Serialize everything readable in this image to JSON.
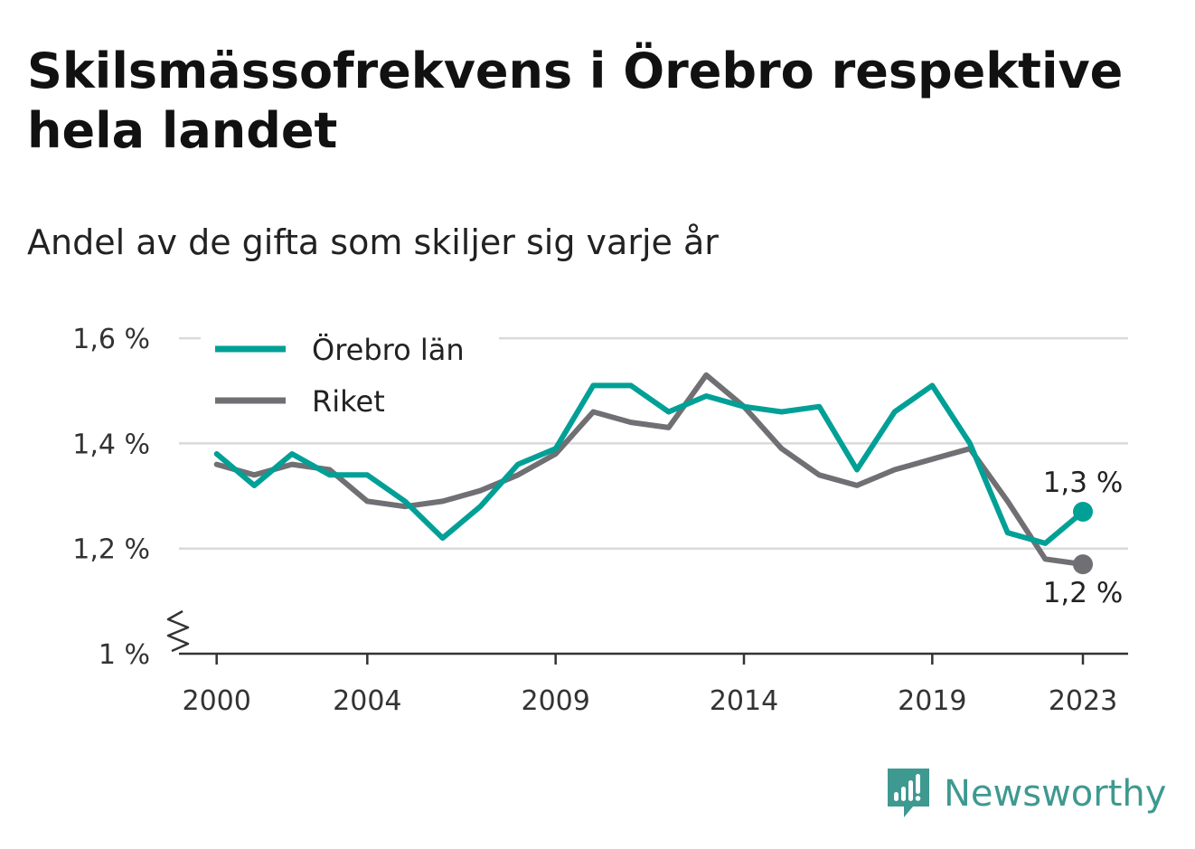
{
  "chart_data": {
    "type": "line",
    "title": "Skilsmässofrekvens i Örebro respektive hela landet",
    "subtitle": "Andel av de gifta som skiljer sig varje år",
    "xlabel": "",
    "ylabel": "",
    "x": [
      2000,
      2001,
      2002,
      2003,
      2004,
      2005,
      2006,
      2007,
      2008,
      2009,
      2010,
      2011,
      2012,
      2013,
      2014,
      2015,
      2016,
      2017,
      2018,
      2019,
      2020,
      2021,
      2022,
      2023
    ],
    "series": [
      {
        "name": "Örebro län",
        "color": "#00a096",
        "values": [
          1.38,
          1.32,
          1.38,
          1.34,
          1.34,
          1.29,
          1.22,
          1.28,
          1.36,
          1.39,
          1.51,
          1.51,
          1.46,
          1.49,
          1.47,
          1.46,
          1.47,
          1.35,
          1.46,
          1.51,
          1.4,
          1.23,
          1.21,
          1.27
        ]
      },
      {
        "name": "Riket",
        "color": "#707074",
        "values": [
          1.36,
          1.34,
          1.36,
          1.35,
          1.29,
          1.28,
          1.29,
          1.31,
          1.34,
          1.38,
          1.46,
          1.44,
          1.43,
          1.53,
          1.47,
          1.39,
          1.34,
          1.32,
          1.35,
          1.37,
          1.39,
          1.29,
          1.18,
          1.17
        ]
      }
    ],
    "yticks": [
      {
        "value": 1.0,
        "label": "1 %"
      },
      {
        "value": 1.2,
        "label": "1,2 %"
      },
      {
        "value": 1.4,
        "label": "1,4 %"
      },
      {
        "value": 1.6,
        "label": "1,6 %"
      }
    ],
    "xticks": [
      2000,
      2004,
      2009,
      2014,
      2019,
      2023
    ],
    "xlim": [
      1999,
      2024.2
    ],
    "ylim": [
      1.0,
      1.65
    ],
    "y_axis_break": true,
    "grid": true,
    "legend_position": "top-left",
    "end_labels": [
      {
        "series": "Örebro län",
        "label": "1,3 %",
        "position": "above"
      },
      {
        "series": "Riket",
        "label": "1,2 %",
        "position": "below"
      }
    ]
  },
  "brand": {
    "name": "Newsworthy",
    "logo_icon": "newsworthy-bar-chart-icon",
    "color": "#3e9990"
  }
}
